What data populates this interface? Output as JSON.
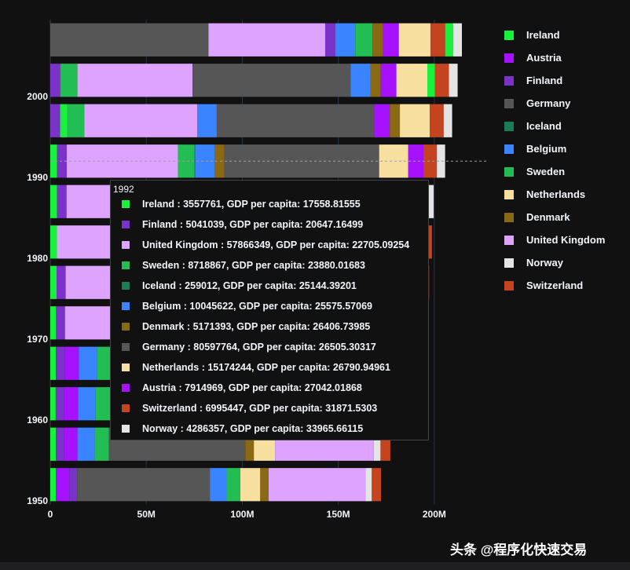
{
  "chart_data": {
    "type": "bar",
    "orientation": "horizontal",
    "barmode": "stack",
    "xlim": [
      0,
      225000000
    ],
    "x_ticks": [
      {
        "value": 0,
        "label": "0"
      },
      {
        "value": 50000000,
        "label": "50M"
      },
      {
        "value": 100000000,
        "label": "100M"
      },
      {
        "value": 150000000,
        "label": "150M"
      },
      {
        "value": 200000000,
        "label": "200M"
      }
    ],
    "y_ticks": [
      "2000",
      "1990",
      "1980",
      "1970",
      "1960",
      "1950"
    ],
    "series_colors": {
      "Ireland": "#19f23c",
      "Austria": "#a612ff",
      "Finland": "#7a32c9",
      "Germany": "#565656",
      "Iceland": "#1b7d55",
      "Belgium": "#3a85ff",
      "Sweden": "#22bd53",
      "Netherlands": "#f7dfa0",
      "Denmark": "#8a6914",
      "United Kingdom": "#dea3ff",
      "Norway": "#e4e4e4",
      "Switzerland": "#c4441f"
    },
    "bars": [
      {
        "year": 2007,
        "segments": [
          [
            "Germany",
            82400000
          ],
          [
            "United Kingdom",
            60776238
          ],
          [
            "Finland",
            5238460
          ],
          [
            "Belgium",
            10392226
          ],
          [
            "Sweden",
            9031088
          ],
          [
            "Denmark",
            5468120
          ],
          [
            "Austria",
            8199783
          ],
          [
            "Netherlands",
            16570613
          ],
          [
            "Switzerland",
            7554661
          ],
          [
            "Ireland",
            4109086
          ],
          [
            "Norway",
            4627926
          ]
        ]
      },
      {
        "year": 2002,
        "segments": [
          [
            "Finland",
            5193039
          ],
          [
            "Sweden",
            8954175
          ],
          [
            "United Kingdom",
            59912431
          ],
          [
            "Germany",
            82350671
          ],
          [
            "Belgium",
            10311970
          ],
          [
            "Denmark",
            5374693
          ],
          [
            "Austria",
            8148312
          ],
          [
            "Netherlands",
            16122830
          ],
          [
            "Ireland",
            3879155
          ],
          [
            "Switzerland",
            7361757
          ],
          [
            "Norway",
            4535591
          ]
        ]
      },
      {
        "year": 1997,
        "segments": [
          [
            "Finland",
            5134406
          ],
          [
            "Ireland",
            3667233
          ],
          [
            "Sweden",
            8897619
          ],
          [
            "United Kingdom",
            58808266
          ],
          [
            "Belgium",
            10199787
          ],
          [
            "Germany",
            82011073
          ],
          [
            "Austria",
            8069876
          ],
          [
            "Denmark",
            5283663
          ],
          [
            "Netherlands",
            15604464
          ],
          [
            "Switzerland",
            7193761
          ],
          [
            "Norway",
            4405672
          ]
        ]
      },
      {
        "year": 1992,
        "segments": [
          [
            "Ireland",
            3557761
          ],
          [
            "Finland",
            5041039
          ],
          [
            "United Kingdom",
            57866349
          ],
          [
            "Sweden",
            8718867
          ],
          [
            "Iceland",
            259012
          ],
          [
            "Belgium",
            10045622
          ],
          [
            "Denmark",
            5171393
          ],
          [
            "Germany",
            80597764
          ],
          [
            "Netherlands",
            15174244
          ],
          [
            "Austria",
            7914969
          ],
          [
            "Switzerland",
            6995447
          ],
          [
            "Norway",
            4286357
          ]
        ]
      },
      {
        "year": 1987,
        "segments": [
          [
            "Ireland",
            3539900
          ],
          [
            "Finland",
            4931729
          ],
          [
            "United Kingdom",
            56981620
          ],
          [
            "Sweden",
            8421403
          ],
          [
            "Belgium",
            9870200
          ],
          [
            "Denmark",
            5127024
          ],
          [
            "Austria",
            7578903
          ],
          [
            "Germany",
            77718298
          ],
          [
            "Netherlands",
            14665278
          ],
          [
            "Switzerland",
            6649942
          ],
          [
            "Norway",
            4186147
          ]
        ]
      },
      {
        "year": 1982,
        "segments": [
          [
            "Ireland",
            3480000
          ],
          [
            "United Kingdom",
            56339704
          ],
          [
            "Finland",
            4826933
          ],
          [
            "Belgium",
            9856303
          ],
          [
            "Sweden",
            8325260
          ],
          [
            "Denmark",
            5117810
          ],
          [
            "Austria",
            7574613
          ],
          [
            "Germany",
            78335266
          ],
          [
            "Netherlands",
            14310401
          ],
          [
            "Norway",
            4114787
          ],
          [
            "Switzerland",
            6468126
          ]
        ]
      },
      {
        "year": 1977,
        "segments": [
          [
            "Ireland",
            3271900
          ],
          [
            "Finland",
            4738902
          ],
          [
            "United Kingdom",
            56179000
          ],
          [
            "Sweden",
            8251648
          ],
          [
            "Belgium",
            9821800
          ],
          [
            "Denmark",
            5088419
          ],
          [
            "Austria",
            7568430
          ],
          [
            "Germany",
            78160773
          ],
          [
            "Netherlands",
            13852989
          ],
          [
            "Norway",
            4043205
          ],
          [
            "Switzerland",
            6316424
          ]
        ]
      },
      {
        "year": 1972,
        "segments": [
          [
            "Ireland",
            3024400
          ],
          [
            "Finland",
            4639657
          ],
          [
            "United Kingdom",
            56079000
          ],
          [
            "Sweden",
            8122293
          ],
          [
            "Belgium",
            9709100
          ],
          [
            "Denmark",
            4991596
          ],
          [
            "Austria",
            7544201
          ],
          [
            "Germany",
            78717088
          ],
          [
            "Netherlands",
            13329874
          ],
          [
            "Norway",
            3933004
          ],
          [
            "Switzerland",
            6401400
          ]
        ]
      },
      {
        "year": 1967,
        "segments": [
          [
            "Ireland",
            2900100
          ],
          [
            "Finland",
            4605744
          ],
          [
            "Austria",
            7376998
          ],
          [
            "Belgium",
            9556500
          ],
          [
            "Sweden",
            7867931
          ],
          [
            "Denmark",
            4838800
          ],
          [
            "Germany",
            76368453
          ],
          [
            "Netherlands",
            12596822
          ],
          [
            "United Kingdom",
            54959000
          ],
          [
            "Norway",
            3786019
          ],
          [
            "Switzerland",
            6063000
          ]
        ]
      },
      {
        "year": 1962,
        "segments": [
          [
            "Ireland",
            2830000
          ],
          [
            "Finland",
            4491443
          ],
          [
            "Austria",
            7129864
          ],
          [
            "Belgium",
            9218400
          ],
          [
            "Sweden",
            7561588
          ],
          [
            "Germany",
            73739117
          ],
          [
            "Denmark",
            4646899
          ],
          [
            "Netherlands",
            11805689
          ],
          [
            "United Kingdom",
            53292000
          ],
          [
            "Norway",
            3638919
          ],
          [
            "Switzerland",
            5666000
          ]
        ]
      },
      {
        "year": 1957,
        "segments": [
          [
            "Ireland",
            2878220
          ],
          [
            "Finland",
            4324000
          ],
          [
            "Austria",
            6965860
          ],
          [
            "Belgium",
            8989111
          ],
          [
            "Sweden",
            7363802
          ],
          [
            "Germany",
            71019069
          ],
          [
            "Denmark",
            4487831
          ],
          [
            "Netherlands",
            11026383
          ],
          [
            "United Kingdom",
            51430000
          ],
          [
            "Norway",
            3491938
          ],
          [
            "Switzerland",
            5126000
          ]
        ]
      },
      {
        "year": 1952,
        "segments": [
          [
            "Ireland",
            2952156
          ],
          [
            "Austria",
            6927772
          ],
          [
            "Finland",
            4090500
          ],
          [
            "Germany",
            69145952
          ],
          [
            "Belgium",
            8730405
          ],
          [
            "Sweden",
            7124673
          ],
          [
            "Netherlands",
            10381988
          ],
          [
            "Denmark",
            4334000
          ],
          [
            "United Kingdom",
            50430000
          ],
          [
            "Norway",
            3327728
          ],
          [
            "Switzerland",
            4815000
          ]
        ]
      }
    ],
    "hover_year": "1992",
    "hover_line_year": 1992
  },
  "legend": {
    "items": [
      {
        "label": "Ireland",
        "color": "#19f23c"
      },
      {
        "label": "Austria",
        "color": "#a612ff"
      },
      {
        "label": "Finland",
        "color": "#7a32c9"
      },
      {
        "label": "Germany",
        "color": "#565656"
      },
      {
        "label": "Iceland",
        "color": "#1b7d55"
      },
      {
        "label": "Belgium",
        "color": "#3a85ff"
      },
      {
        "label": "Sweden",
        "color": "#22bd53"
      },
      {
        "label": "Netherlands",
        "color": "#f7dfa0"
      },
      {
        "label": "Denmark",
        "color": "#8a6914"
      },
      {
        "label": "United Kingdom",
        "color": "#dea3ff"
      },
      {
        "label": "Norway",
        "color": "#e4e4e4"
      },
      {
        "label": "Switzerland",
        "color": "#c4441f"
      }
    ]
  },
  "tooltip": {
    "title": "1992",
    "rows": [
      {
        "color": "#19f23c",
        "text": "Ireland : 3557761, GDP per capita: 17558.81555"
      },
      {
        "color": "#7a32c9",
        "text": "Finland : 5041039, GDP per capita: 20647.16499"
      },
      {
        "color": "#dea3ff",
        "text": "United Kingdom : 57866349, GDP per capita: 22705.09254"
      },
      {
        "color": "#22bd53",
        "text": "Sweden : 8718867, GDP per capita: 23880.01683"
      },
      {
        "color": "#1b7d55",
        "text": "Iceland : 259012, GDP per capita: 25144.39201"
      },
      {
        "color": "#3a85ff",
        "text": "Belgium : 10045622, GDP per capita: 25575.57069"
      },
      {
        "color": "#8a6914",
        "text": "Denmark : 5171393, GDP per capita: 26406.73985"
      },
      {
        "color": "#565656",
        "text": "Germany : 80597764, GDP per capita: 26505.30317"
      },
      {
        "color": "#f7dfa0",
        "text": "Netherlands : 15174244, GDP per capita: 26790.94961"
      },
      {
        "color": "#a612ff",
        "text": "Austria : 7914969, GDP per capita: 27042.01868"
      },
      {
        "color": "#c4441f",
        "text": "Switzerland : 6995447, GDP per capita: 31871.5303"
      },
      {
        "color": "#e4e4e4",
        "text": "Norway : 4286357, GDP per capita: 33965.66115"
      }
    ]
  },
  "watermark": "头条 @程序化快速交易"
}
